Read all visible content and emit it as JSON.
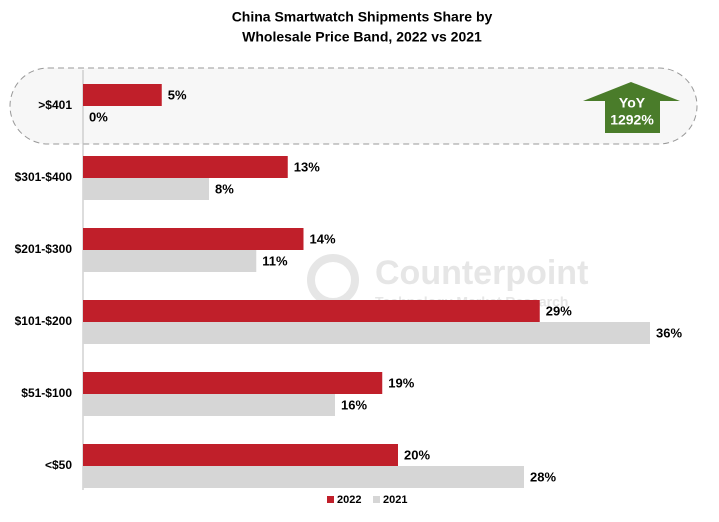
{
  "chart_data": {
    "type": "bar",
    "orientation": "horizontal",
    "title": [
      "China Smartwatch Shipments Share by",
      "Wholesale Price Band, 2022 vs 2021"
    ],
    "categories": [
      ">$401",
      "$301-$400",
      "$201-$300",
      "$101-$200",
      "$51-$100",
      "<$50"
    ],
    "series": [
      {
        "name": "2022",
        "color": "#c01f2a",
        "values": [
          5,
          13,
          14,
          29,
          19,
          20
        ],
        "value_labels": [
          "5%",
          "13%",
          "14%",
          "29%",
          "19%",
          "20%"
        ]
      },
      {
        "name": "2021",
        "color": "#d6d6d6",
        "values": [
          0,
          8,
          11,
          36,
          16,
          28
        ],
        "value_labels": [
          "0%",
          "8%",
          "11%",
          "36%",
          "16%",
          "28%"
        ]
      }
    ],
    "annotation": [
      "YoY",
      "1292%"
    ],
    "watermark": [
      "Counterpoint",
      "Technology Market Research"
    ],
    "legend": "bottom"
  }
}
